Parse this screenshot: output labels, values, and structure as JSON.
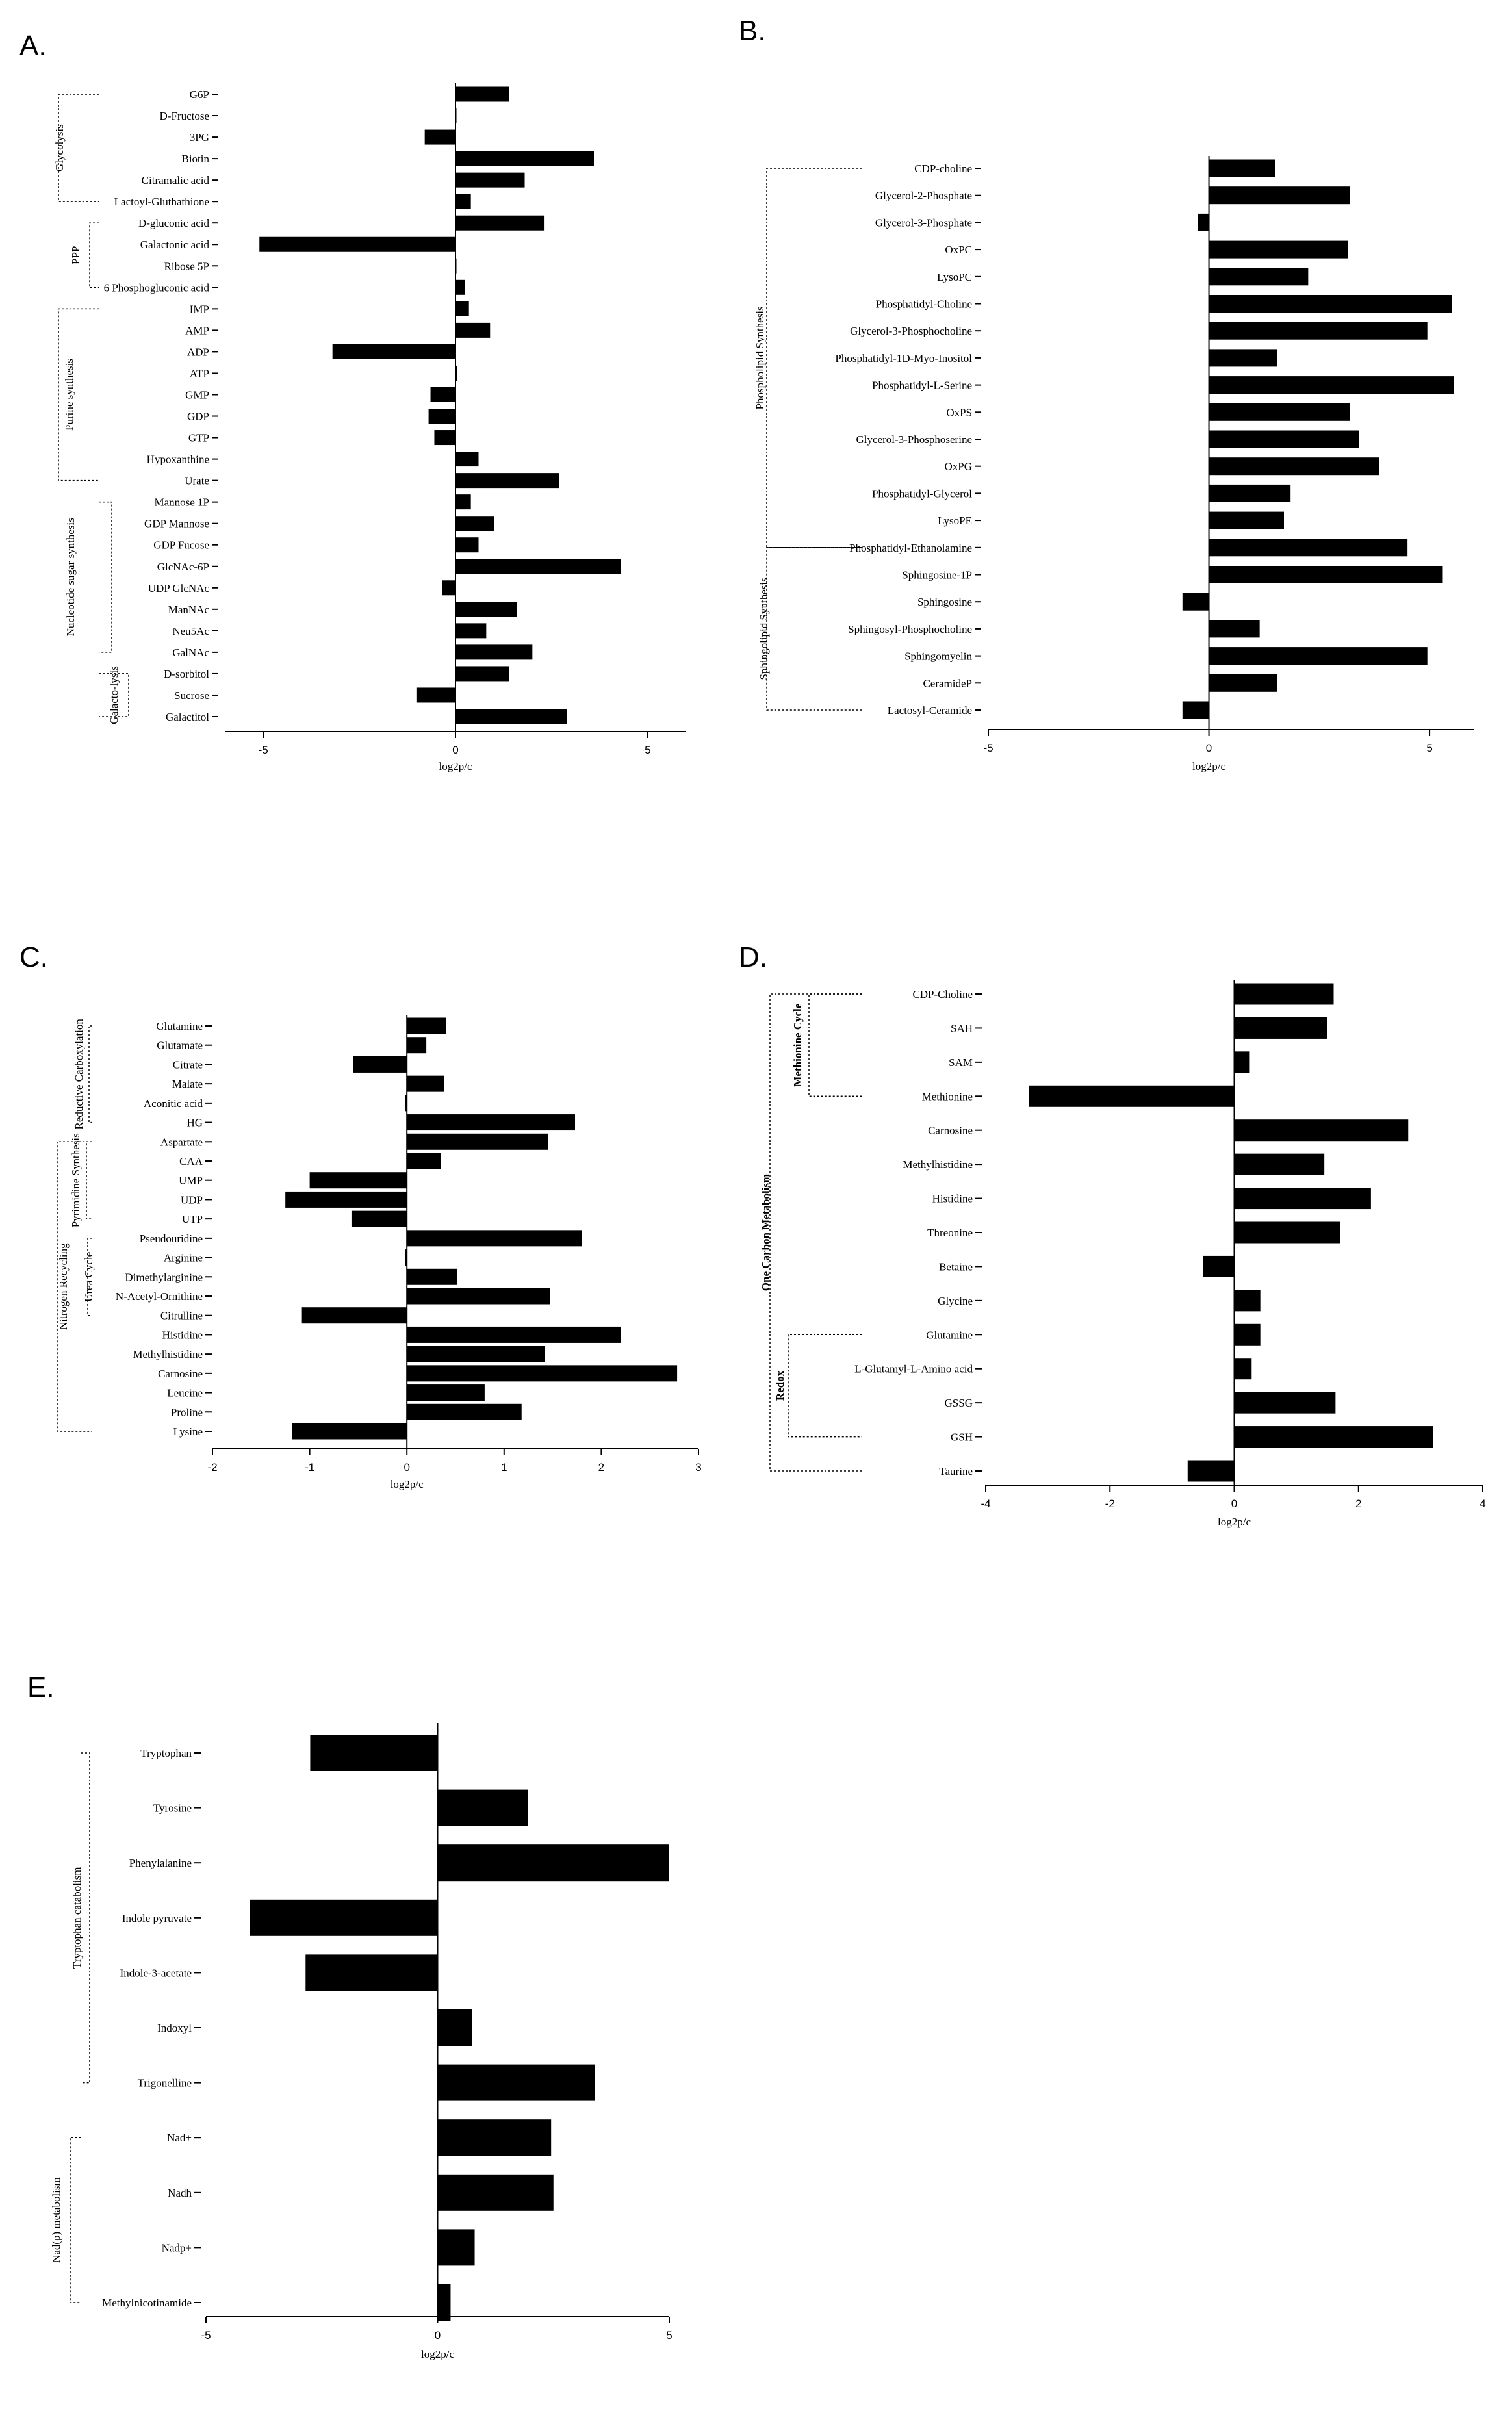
{
  "chart_data": [
    {
      "panel": "A.",
      "type": "bar",
      "orientation": "horizontal",
      "xlabel": "log2p/c",
      "xlim": [
        -6,
        6
      ],
      "xticks": [
        -5,
        0,
        5
      ],
      "categories": [
        "G6P",
        "D-Fructose",
        "3PG",
        "Biotin",
        "Citramalic acid",
        "Lactoyl-Gluthathione",
        "D-gluconic acid",
        "Galactonic acid",
        "Ribose 5P",
        "6 Phosphogluconic acid",
        "IMP",
        "AMP",
        "ADP",
        "ATP",
        "GMP",
        "GDP",
        "GTP",
        "Hypoxanthine",
        "Urate",
        "Mannose 1P",
        "GDP Mannose",
        "GDP Fucose",
        "GlcNAc-6P",
        "UDP GlcNAc",
        "ManNAc",
        "Neu5Ac",
        "GalNAc",
        "D-sorbitol",
        "Sucrose",
        "Galactitol"
      ],
      "values": [
        1.4,
        0.02,
        -0.8,
        3.6,
        1.8,
        0.4,
        2.3,
        -5.1,
        0.0,
        0.25,
        0.35,
        0.9,
        -3.2,
        0.05,
        -0.65,
        -0.7,
        -0.55,
        0.6,
        2.7,
        0.4,
        1.0,
        0.6,
        4.3,
        -0.35,
        1.6,
        0.8,
        2.0,
        1.4,
        -1.0,
        2.9
      ],
      "groups": [
        {
          "label": "Glycolysis",
          "from": 0,
          "to": 5
        },
        {
          "label": "PPP",
          "from": 6,
          "to": 9
        },
        {
          "label": "Purine synthesis",
          "from": 10,
          "to": 18
        },
        {
          "label": "Nucleotide sugar synthesis",
          "from": 19,
          "to": 26
        },
        {
          "label": "Galacto-lysis",
          "from": 27,
          "to": 29
        }
      ]
    },
    {
      "panel": "B.",
      "type": "bar",
      "orientation": "horizontal",
      "xlabel": "log2p/c",
      "xlim": [
        -5,
        6
      ],
      "xticks": [
        -5,
        0,
        5
      ],
      "categories": [
        "CDP-choline",
        "Glycerol-2-Phosphate",
        "Glycerol-3-Phosphate",
        "OxPC",
        "LysoPC",
        "Phosphatidyl-Choline",
        "Glycerol-3-Phosphocholine",
        "Phosphatidyl-1D-Myo-Inositol",
        "Phosphatidyl-L-Serine",
        "OxPS",
        "Glycerol-3-Phosphoserine",
        "OxPG",
        "Phosphatidyl-Glycerol",
        "LysoPE",
        "Phosphatidyl-Ethanolamine",
        "Sphingosine-1P",
        "Sphingosine",
        "Sphingosyl-Phosphocholine",
        "Sphingomyelin",
        "CeramideP",
        "Lactosyl-Ceramide"
      ],
      "values": [
        1.5,
        3.2,
        -0.25,
        3.15,
        2.25,
        5.5,
        4.95,
        1.55,
        5.55,
        3.2,
        3.4,
        3.85,
        1.85,
        1.7,
        4.5,
        5.3,
        -0.6,
        1.15,
        4.95,
        1.55,
        -0.6
      ],
      "groups": [
        {
          "label": "Phospholipid Synthesis",
          "from": 0,
          "to": 14
        },
        {
          "label": "Sphingolipid Synthesis",
          "from": 14,
          "to": 20
        }
      ]
    },
    {
      "panel": "C.",
      "type": "bar",
      "orientation": "horizontal",
      "xlabel": "log2p/c",
      "xlim": [
        -2,
        3
      ],
      "xticks": [
        -2,
        -1,
        0,
        1,
        2,
        3
      ],
      "categories": [
        "Glutamine",
        "Glutamate",
        "Citrate",
        "Malate",
        "Aconitic acid",
        "HG",
        "Aspartate",
        "CAA",
        "UMP",
        "UDP",
        "UTP",
        "Pseudouridine",
        "Arginine",
        "Dimethylarginine",
        "N-Acetyl-Ornithine",
        "Citrulline",
        "Histidine",
        "Methylhistidine",
        "Carnosine",
        "Leucine",
        "Proline",
        "Lysine"
      ],
      "values": [
        0.4,
        0.2,
        -0.55,
        0.38,
        -0.02,
        1.73,
        1.45,
        0.35,
        -1.0,
        -1.25,
        -0.57,
        1.8,
        -0.02,
        0.52,
        1.47,
        -1.08,
        2.2,
        1.42,
        2.78,
        0.8,
        1.18,
        -1.18
      ],
      "groups": [
        {
          "label": "Reductive Carboxylation",
          "from": 0,
          "to": 5
        },
        {
          "label": "Pyrimidine Synthesis",
          "from": 6,
          "to": 10
        },
        {
          "label": "Urea Cycle",
          "from": 11,
          "to": 15
        },
        {
          "label": "Nitrogen Recycling",
          "from": 6,
          "to": 21
        }
      ]
    },
    {
      "panel": "D.",
      "type": "bar",
      "orientation": "horizontal",
      "xlabel": "log2p/c",
      "xlim": [
        -4,
        4
      ],
      "xticks": [
        -4,
        -2,
        0,
        2,
        4
      ],
      "categories": [
        "CDP-Choline",
        "SAH",
        "SAM",
        "Methionine",
        "Carnosine",
        "Methylhistidine",
        "Histidine",
        "Threonine",
        "Betaine",
        "Glycine",
        "Glutamine",
        "L-Glutamyl-L-Amino acid",
        "GSSG",
        "GSH",
        "Taurine"
      ],
      "values": [
        1.6,
        1.5,
        0.25,
        -3.3,
        2.8,
        1.45,
        2.2,
        1.7,
        -0.5,
        0.42,
        0.42,
        0.28,
        1.63,
        3.2,
        -0.75
      ],
      "groups": [
        {
          "label": "Methionine Cycle",
          "from": 0,
          "to": 3
        },
        {
          "label": "One Carbon Metabolism",
          "from": 0,
          "to": 14
        },
        {
          "label": "Redox",
          "from": 10,
          "to": 13
        }
      ]
    },
    {
      "panel": "E.",
      "type": "bar",
      "orientation": "horizontal",
      "xlabel": "log2p/c",
      "xlim": [
        -5,
        5
      ],
      "xticks": [
        -5,
        0,
        5
      ],
      "categories": [
        "Tryptophan",
        "Tyrosine",
        "Phenylalanine",
        "Indole pyruvate",
        "Indole-3-acetate",
        "Indoxyl",
        "Trigonelline",
        "Nad+",
        "Nadh",
        "Nadp+",
        "Methylnicotinamide"
      ],
      "values": [
        -2.75,
        1.95,
        5.0,
        -4.05,
        -2.85,
        0.75,
        3.4,
        2.45,
        2.5,
        0.8,
        0.28
      ],
      "groups": [
        {
          "label": "Tryptophan catabolism",
          "from": 0,
          "to": 6
        },
        {
          "label": "Nad(p) metabolism",
          "from": 7,
          "to": 10
        }
      ]
    }
  ]
}
